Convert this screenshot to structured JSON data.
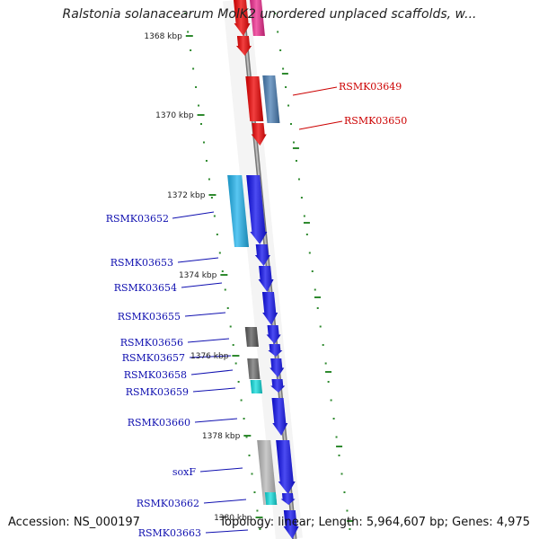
{
  "title": "Ralstonia solanacearum MolK2 unordered unplaced scaffolds, w...",
  "accession": "Accession: NS_000197",
  "summary": "Topology: linear; Length: 5,964,607 bp; Genes: 4,975",
  "colors": {
    "backbone": "#8c8c8c",
    "tick": "#2f8a2f",
    "label_red": "#cc0000",
    "label_blue": "#1010b0"
  },
  "ticks": [
    {
      "label": "1368 kbp"
    },
    {
      "label": "1370 kbp"
    },
    {
      "label": "1372 kbp"
    },
    {
      "label": "1374 kbp"
    },
    {
      "label": "1376 kbp"
    },
    {
      "label": "1378 kbp"
    },
    {
      "label": "1380 kbp"
    }
  ],
  "genes": [
    {
      "label": "",
      "color": "#ee0000"
    },
    {
      "label": "",
      "color": "#ee2a8e"
    },
    {
      "label": "",
      "color": "#ee0000"
    },
    {
      "label": "RSMK03649",
      "color": "#4a7fb5"
    },
    {
      "label": "",
      "color": "#ee0000"
    },
    {
      "label": "RSMK03650",
      "color": "#ee0000"
    },
    {
      "label": "RSMK03652",
      "color": "#22b4ee"
    },
    {
      "label": "",
      "color": "#1010ee"
    },
    {
      "label": "RSMK03653",
      "color": "#1010ee"
    },
    {
      "label": "RSMK03654",
      "color": "#1010ee"
    },
    {
      "label": "RSMK03655",
      "color": "#1010ee"
    },
    {
      "label": "RSMK03656",
      "color": "#5a5a5a"
    },
    {
      "label": "",
      "color": "#1010ee"
    },
    {
      "label": "RSMK03657",
      "color": "#1010ee"
    },
    {
      "label": "RSMK03658",
      "color": "#707070"
    },
    {
      "label": "",
      "color": "#1010ee"
    },
    {
      "label": "RSMK03659",
      "color": "#11dddd"
    },
    {
      "label": "",
      "color": "#1010ee"
    },
    {
      "label": "RSMK03660",
      "color": "#1010ee"
    },
    {
      "label": "soxF",
      "color": "#b8b8b8"
    },
    {
      "label": "",
      "color": "#1010ee"
    },
    {
      "label": "RSMK03662",
      "color": "#11dddd"
    },
    {
      "label": "",
      "color": "#1010ee"
    },
    {
      "label": "RSMK03663",
      "color": "#1010ee"
    }
  ]
}
